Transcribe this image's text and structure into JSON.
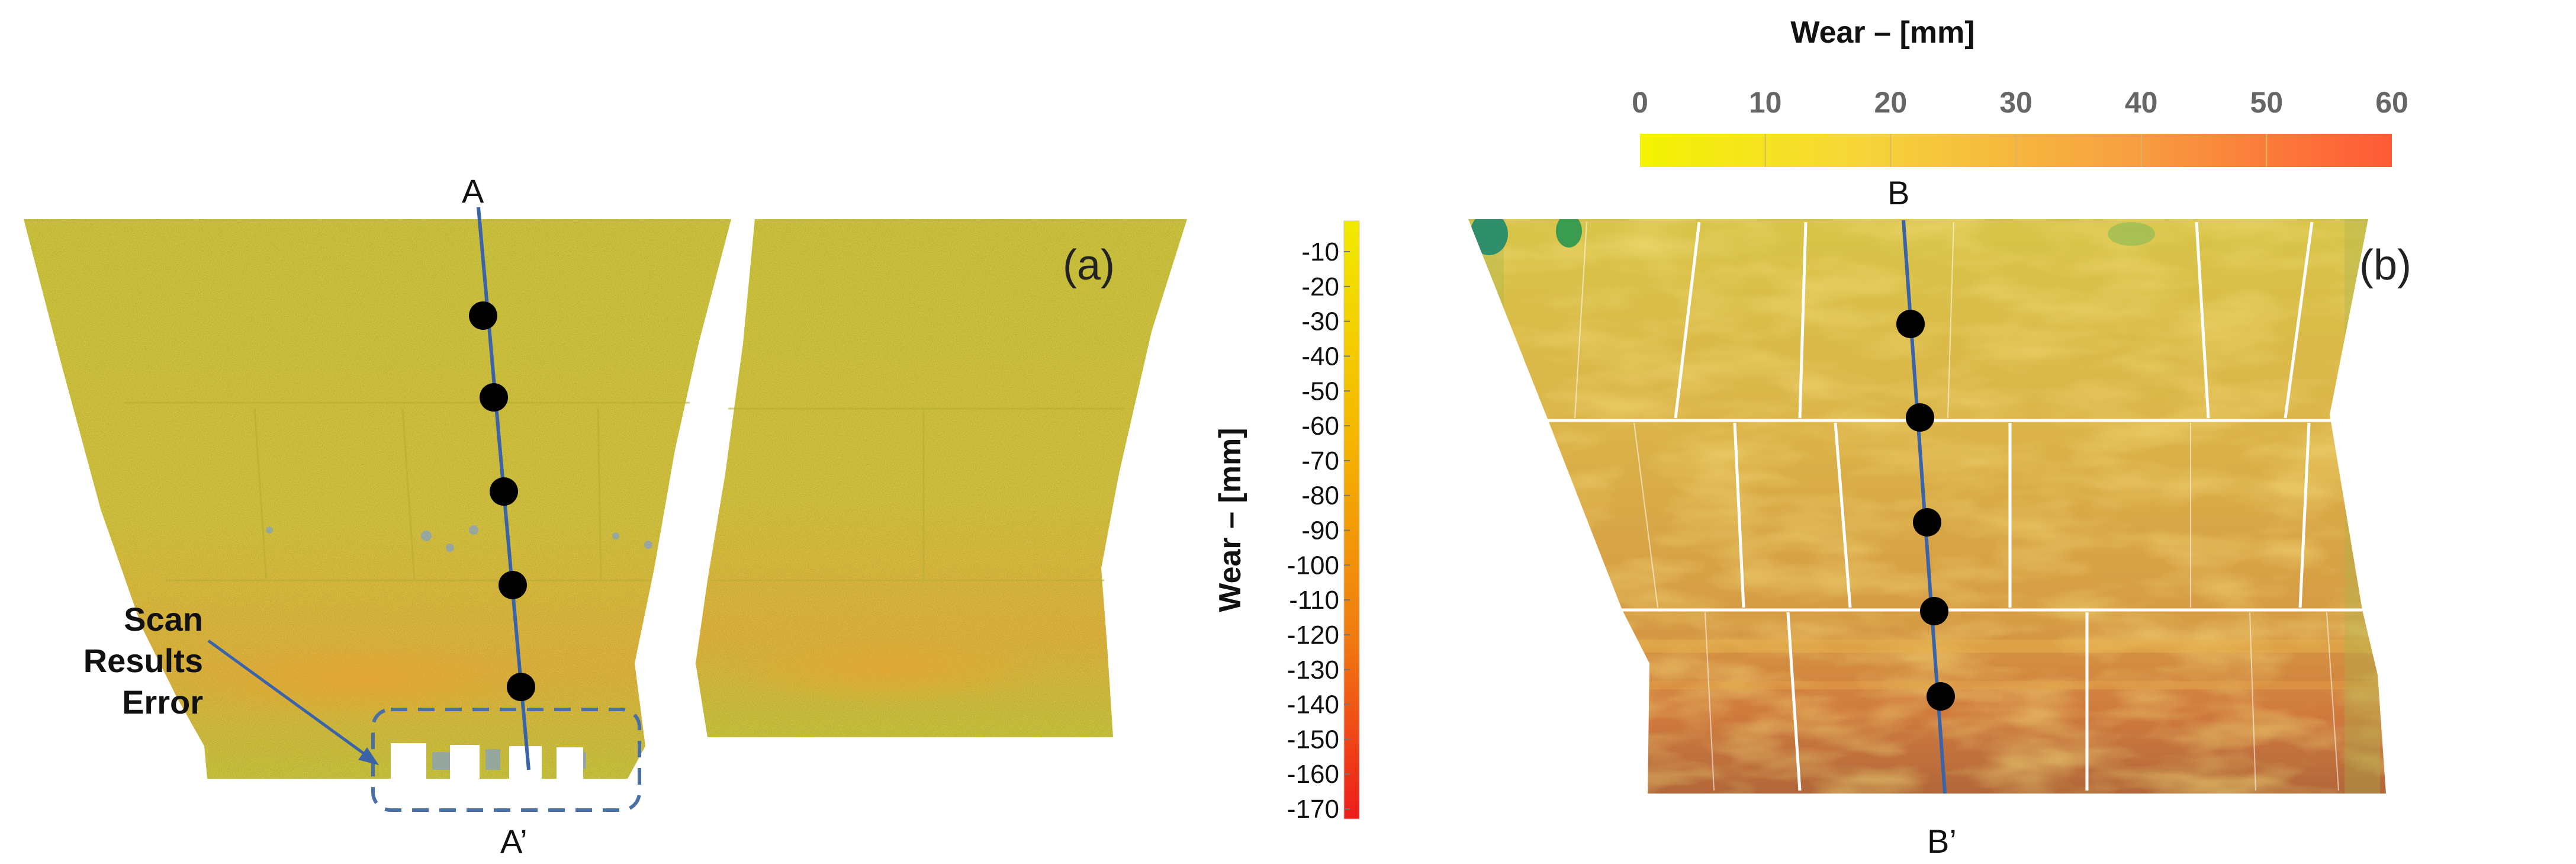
{
  "panel_a": {
    "label": "(a)",
    "section_top": "A",
    "section_bottom": "A’",
    "annotation_lines": [
      "Scan",
      "Results",
      "Error"
    ]
  },
  "panel_b": {
    "label": "(b)",
    "section_top": "B",
    "section_bottom": "B’"
  },
  "vertical_colorbar": {
    "title": "Wear – [mm]",
    "ticks": [
      "-10",
      "-20",
      "-30",
      "-40",
      "-50",
      "-60",
      "-70",
      "-80",
      "-90",
      "-100",
      "-110",
      "-120",
      "-130",
      "-140",
      "-150",
      "-160",
      "-170"
    ],
    "color_top": "#f2ea00",
    "color_bottom": "#ee1c1c"
  },
  "horizontal_colorbar": {
    "title": "Wear – [mm]",
    "ticks": [
      "0",
      "10",
      "20",
      "30",
      "40",
      "50",
      "60"
    ],
    "color_left": "#f4f400",
    "color_right": "#ff5a36"
  },
  "colors": {
    "section_line": "#3a63a8",
    "marker": "#000000",
    "error_box": "#4a6fa5"
  }
}
